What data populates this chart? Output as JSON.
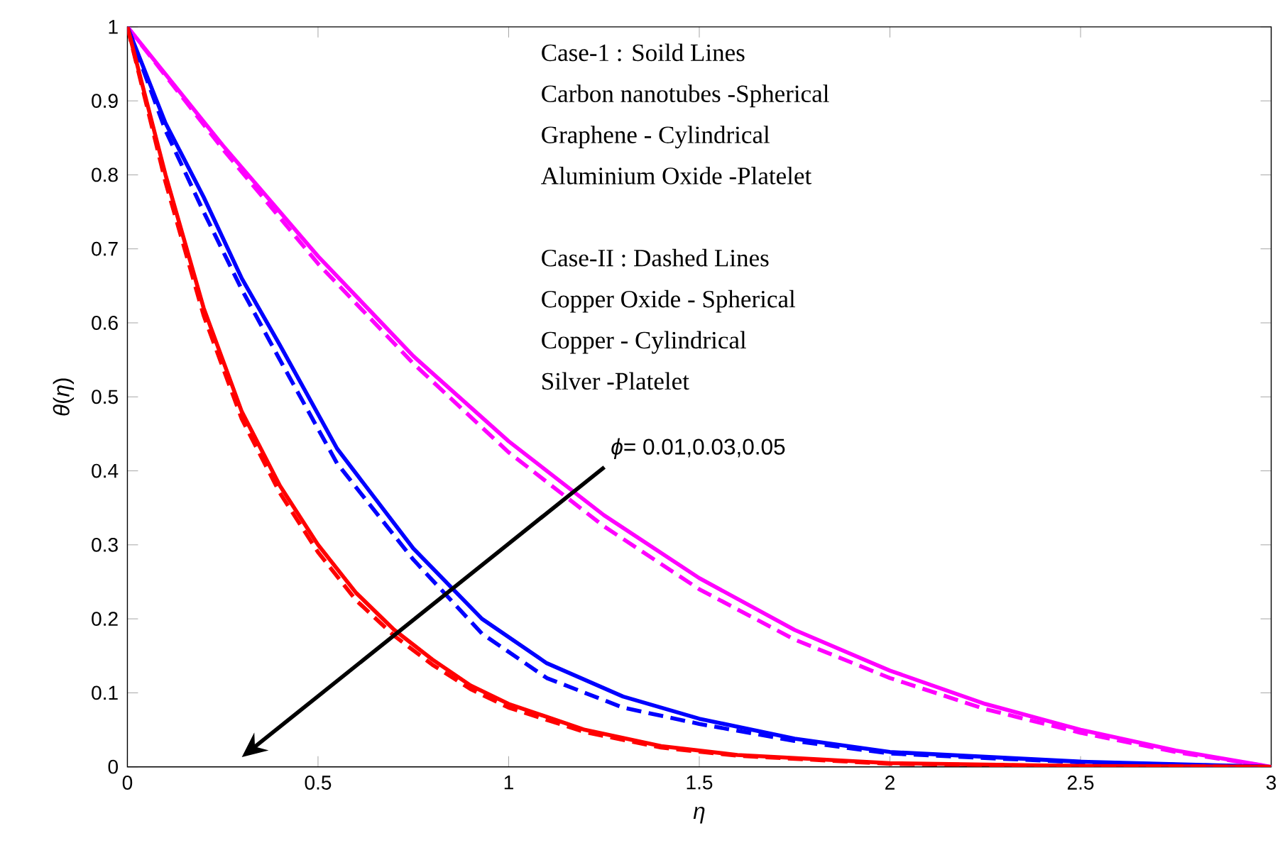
{
  "chart_data": {
    "type": "line",
    "xlabel": "*η*",
    "ylabel": "*θ*(*η*)",
    "xlim": [
      0,
      3
    ],
    "ylim": [
      0,
      1
    ],
    "xticks": [
      0,
      0.5,
      1,
      1.5,
      2,
      2.5,
      3
    ],
    "yticks": [
      0,
      0.1,
      0.2,
      0.3,
      0.4,
      0.5,
      0.6,
      0.7,
      0.8,
      0.9,
      1
    ],
    "grid": false,
    "series": [
      {
        "color": "#ff00ff",
        "line_style": "solid",
        "x": [
          0,
          0.25,
          0.5,
          0.75,
          1,
          1.25,
          1.5,
          1.75,
          2,
          2.25,
          2.5,
          2.75,
          3
        ],
        "values": [
          1,
          0.84,
          0.69,
          0.555,
          0.44,
          0.34,
          0.255,
          0.185,
          0.13,
          0.085,
          0.05,
          0.022,
          0
        ]
      },
      {
        "color": "#ff00ff",
        "line_style": "dashed",
        "x": [
          0,
          0.25,
          0.5,
          0.75,
          1,
          1.25,
          1.5,
          1.75,
          2,
          2.25,
          2.5,
          2.75,
          3
        ],
        "values": [
          1,
          0.835,
          0.68,
          0.545,
          0.425,
          0.325,
          0.24,
          0.172,
          0.12,
          0.078,
          0.046,
          0.02,
          0
        ]
      },
      {
        "color": "#0000ff",
        "line_style": "solid",
        "x": [
          0,
          0.1,
          0.2,
          0.3,
          0.4,
          0.55,
          0.75,
          0.93,
          1.1,
          1.3,
          1.5,
          1.75,
          2,
          2.5,
          3
        ],
        "values": [
          1,
          0.87,
          0.77,
          0.66,
          0.57,
          0.43,
          0.295,
          0.2,
          0.14,
          0.095,
          0.065,
          0.038,
          0.02,
          0.007,
          0
        ]
      },
      {
        "color": "#0000ff",
        "line_style": "dashed",
        "x": [
          0,
          0.1,
          0.2,
          0.3,
          0.4,
          0.55,
          0.75,
          0.93,
          1.1,
          1.3,
          1.5,
          1.75,
          2,
          2.5,
          3
        ],
        "values": [
          1,
          0.86,
          0.75,
          0.645,
          0.55,
          0.41,
          0.28,
          0.18,
          0.12,
          0.08,
          0.058,
          0.035,
          0.018,
          0.006,
          0
        ]
      },
      {
        "color": "#ff0000",
        "line_style": "solid",
        "x": [
          0,
          0.1,
          0.2,
          0.3,
          0.4,
          0.5,
          0.6,
          0.7,
          0.8,
          0.9,
          1,
          1.2,
          1.4,
          1.6,
          2,
          2.5,
          3
        ],
        "values": [
          1,
          0.8,
          0.62,
          0.48,
          0.38,
          0.3,
          0.235,
          0.185,
          0.145,
          0.11,
          0.085,
          0.05,
          0.028,
          0.016,
          0.005,
          0.001,
          0
        ]
      },
      {
        "color": "#ff0000",
        "line_style": "dashed",
        "x": [
          0,
          0.1,
          0.2,
          0.3,
          0.4,
          0.5,
          0.6,
          0.7,
          0.8,
          0.9,
          1,
          1.2,
          1.4,
          1.6,
          2,
          2.5,
          3
        ],
        "values": [
          1,
          0.79,
          0.61,
          0.47,
          0.37,
          0.29,
          0.225,
          0.177,
          0.138,
          0.105,
          0.08,
          0.047,
          0.026,
          0.015,
          0.004,
          0.001,
          0
        ]
      }
    ],
    "annotations": [
      "Case-1 : Soild Lines",
      "Carbon nanotubes -Spherical",
      "Graphene - Cylindrical",
      "Aluminium Oxide -Platelet",
      "Case-II : Dashed Lines",
      "Copper Oxide - Spherical",
      "Copper - Cylindrical",
      "Silver -Platelet",
      "*ϕ*= 0.01,0.03,0.05"
    ]
  }
}
